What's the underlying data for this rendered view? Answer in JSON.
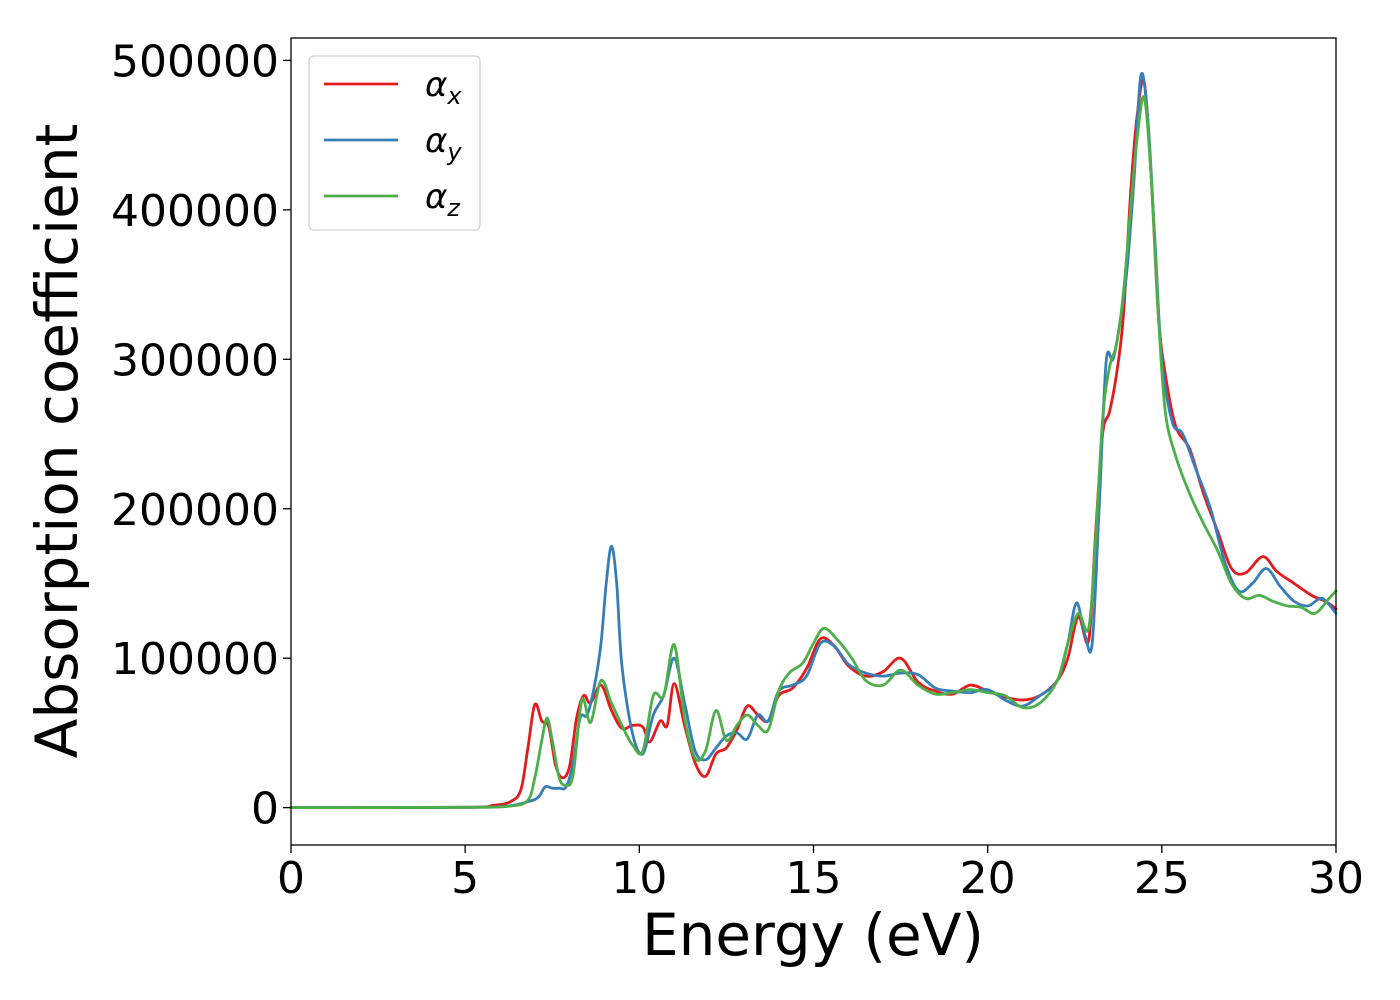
{
  "chart_data": {
    "type": "line",
    "title": "",
    "xlabel": "Energy (eV)",
    "ylabel": "Absorption coefficient",
    "xlim": [
      0,
      30
    ],
    "ylim": [
      -25000,
      515000
    ],
    "xticks": [
      0,
      5,
      10,
      15,
      20,
      25,
      30
    ],
    "yticks": [
      0,
      100000,
      200000,
      300000,
      400000,
      500000
    ],
    "grid": false,
    "legend_position": "top-left",
    "series": [
      {
        "name": "αx",
        "symbol": "α",
        "subscript": "x",
        "color": "#e41a1c",
        "x": [
          0,
          5,
          5.8,
          6.3,
          6.6,
          6.8,
          7.0,
          7.2,
          7.4,
          7.6,
          7.8,
          8.0,
          8.2,
          8.4,
          8.6,
          8.9,
          9.2,
          9.5,
          9.8,
          10.1,
          10.3,
          10.6,
          10.8,
          11.0,
          11.3,
          11.6,
          11.9,
          12.2,
          12.5,
          12.8,
          13.1,
          13.4,
          13.7,
          14.0,
          14.4,
          14.8,
          15.2,
          15.6,
          16.0,
          16.5,
          17.0,
          17.5,
          18.0,
          18.5,
          19.0,
          19.5,
          20.0,
          20.5,
          21.0,
          21.5,
          22.0,
          22.3,
          22.6,
          22.9,
          23.1,
          23.3,
          23.5,
          23.7,
          23.9,
          24.1,
          24.3,
          24.5,
          24.7,
          24.9,
          25.1,
          25.4,
          25.8,
          26.2,
          26.6,
          27.0,
          27.4,
          27.9,
          28.3,
          28.8,
          29.3,
          29.7,
          30.0
        ],
        "y": [
          0,
          200,
          1500,
          4000,
          12000,
          40000,
          69000,
          58000,
          54000,
          28000,
          20000,
          28000,
          60000,
          75000,
          70000,
          82000,
          65000,
          53000,
          55000,
          54000,
          44000,
          58000,
          55000,
          83000,
          55000,
          30000,
          21000,
          36000,
          40000,
          52000,
          68000,
          62000,
          58000,
          75000,
          80000,
          93000,
          113000,
          108000,
          95000,
          88000,
          91000,
          100000,
          84000,
          78000,
          76000,
          82000,
          78000,
          74000,
          72000,
          75000,
          85000,
          100000,
          128000,
          112000,
          185000,
          250000,
          265000,
          290000,
          330000,
          410000,
          465000,
          485000,
          420000,
          330000,
          290000,
          255000,
          240000,
          210000,
          185000,
          160000,
          157000,
          168000,
          158000,
          150000,
          142000,
          138000,
          133000
        ]
      },
      {
        "name": "αy",
        "symbol": "α",
        "subscript": "y",
        "color": "#377eb8",
        "x": [
          0,
          5,
          6.2,
          6.8,
          7.1,
          7.3,
          7.5,
          7.7,
          7.9,
          8.1,
          8.3,
          8.5,
          8.7,
          8.9,
          9.05,
          9.2,
          9.35,
          9.5,
          9.8,
          10.1,
          10.4,
          10.7,
          11.0,
          11.3,
          11.6,
          11.9,
          12.2,
          12.5,
          12.8,
          13.1,
          13.4,
          13.7,
          14.0,
          14.4,
          14.8,
          15.2,
          15.6,
          16.0,
          16.5,
          17.0,
          17.5,
          18.0,
          18.5,
          19.0,
          19.5,
          20.0,
          20.5,
          21.0,
          21.5,
          22.0,
          22.3,
          22.55,
          22.8,
          23.0,
          23.2,
          23.4,
          23.6,
          23.8,
          24.0,
          24.2,
          24.4,
          24.6,
          24.8,
          25.0,
          25.3,
          25.6,
          26.0,
          26.4,
          26.8,
          27.2,
          27.6,
          28.0,
          28.4,
          28.8,
          29.2,
          29.6,
          30.0
        ],
        "y": [
          0,
          200,
          1000,
          4000,
          7000,
          14000,
          13000,
          13000,
          14000,
          30000,
          60000,
          62000,
          80000,
          110000,
          150000,
          175000,
          150000,
          95000,
          50000,
          36000,
          62000,
          75000,
          100000,
          70000,
          38000,
          32000,
          40000,
          48000,
          50000,
          46000,
          62000,
          58000,
          78000,
          82000,
          88000,
          110000,
          108000,
          96000,
          90000,
          88000,
          90000,
          89000,
          80000,
          78000,
          77000,
          79000,
          72000,
          68000,
          75000,
          85000,
          110000,
          137000,
          115000,
          110000,
          200000,
          298000,
          300000,
          325000,
          360000,
          420000,
          490000,
          460000,
          380000,
          300000,
          258000,
          250000,
          225000,
          200000,
          165000,
          145000,
          150000,
          160000,
          148000,
          138000,
          135000,
          140000,
          130000
        ]
      },
      {
        "name": "αz",
        "symbol": "α",
        "subscript": "z",
        "color": "#4daf4a",
        "x": [
          0,
          5,
          6.3,
          6.8,
          7.0,
          7.2,
          7.35,
          7.5,
          7.7,
          7.9,
          8.1,
          8.35,
          8.6,
          8.9,
          9.2,
          9.5,
          9.8,
          10.1,
          10.4,
          10.7,
          11.0,
          11.3,
          11.6,
          11.9,
          12.2,
          12.5,
          12.8,
          13.1,
          13.4,
          13.7,
          14.0,
          14.3,
          14.7,
          15.0,
          15.3,
          15.7,
          16.1,
          16.5,
          17.0,
          17.5,
          18.0,
          18.5,
          19.0,
          19.5,
          20.0,
          20.5,
          21.0,
          21.5,
          22.0,
          22.3,
          22.6,
          22.9,
          23.1,
          23.3,
          23.5,
          23.7,
          23.9,
          24.1,
          24.3,
          24.5,
          24.7,
          24.9,
          25.1,
          25.4,
          25.8,
          26.2,
          26.6,
          27.0,
          27.4,
          27.8,
          28.2,
          28.6,
          29.0,
          29.4,
          29.8,
          30.0
        ],
        "y": [
          0,
          200,
          1000,
          5000,
          20000,
          45000,
          60000,
          45000,
          20000,
          15000,
          22000,
          72000,
          57000,
          85000,
          70000,
          55000,
          42000,
          38000,
          75000,
          75000,
          109000,
          60000,
          33000,
          38000,
          65000,
          45000,
          55000,
          62000,
          55000,
          52000,
          78000,
          90000,
          97000,
          110000,
          120000,
          112000,
          100000,
          85000,
          82000,
          92000,
          82000,
          76000,
          77000,
          79000,
          77000,
          75000,
          67000,
          70000,
          85000,
          110000,
          130000,
          120000,
          180000,
          260000,
          295000,
          310000,
          345000,
          400000,
          450000,
          475000,
          420000,
          330000,
          265000,
          235000,
          210000,
          190000,
          172000,
          150000,
          140000,
          142000,
          138000,
          135000,
          134000,
          130000,
          140000,
          145000
        ]
      }
    ]
  }
}
